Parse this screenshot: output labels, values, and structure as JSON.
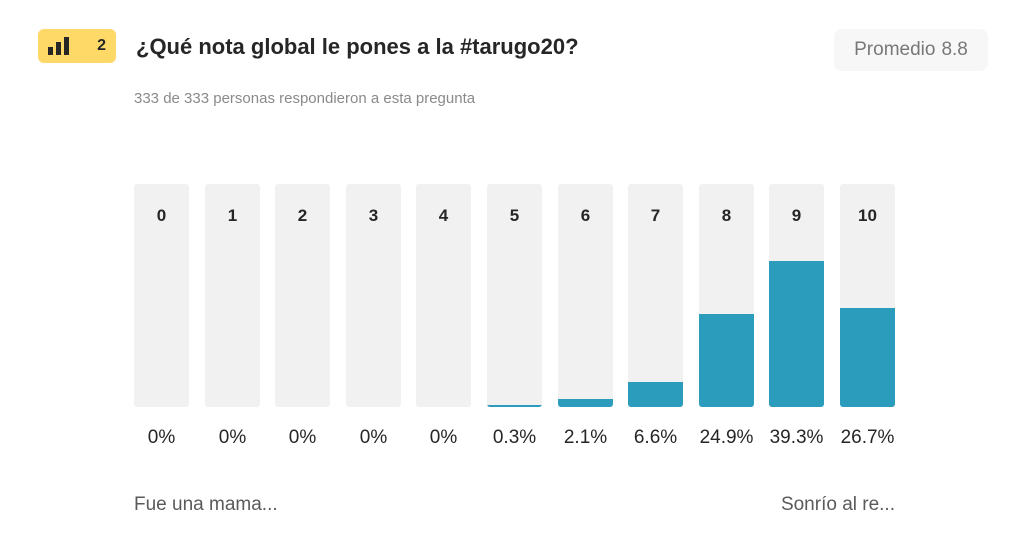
{
  "badge": {
    "number": "2",
    "icon": "bar-chart-icon",
    "color": "#ffd968"
  },
  "question": {
    "title": "¿Qué nota global le pones a la #tarugo20?"
  },
  "average": {
    "label": "Promedio",
    "value": "8.8"
  },
  "responses": {
    "text": "333 de 333 personas respondieron a esta pregunta"
  },
  "scale": {
    "left_label": "Fue una mama...",
    "right_label": "Sonrío al re..."
  },
  "chart_data": {
    "type": "bar",
    "categories": [
      "0",
      "1",
      "2",
      "3",
      "4",
      "5",
      "6",
      "7",
      "8",
      "9",
      "10"
    ],
    "values": [
      0,
      0,
      0,
      0,
      0,
      0.3,
      2.1,
      6.6,
      24.9,
      39.3,
      26.7
    ],
    "value_labels": [
      "0%",
      "0%",
      "0%",
      "0%",
      "0%",
      "0.3%",
      "2.1%",
      "6.6%",
      "24.9%",
      "39.3%",
      "26.7%"
    ],
    "ylim": [
      0,
      100
    ],
    "bar_color": "#2c9cbd",
    "track_color": "#f1f1f1"
  }
}
